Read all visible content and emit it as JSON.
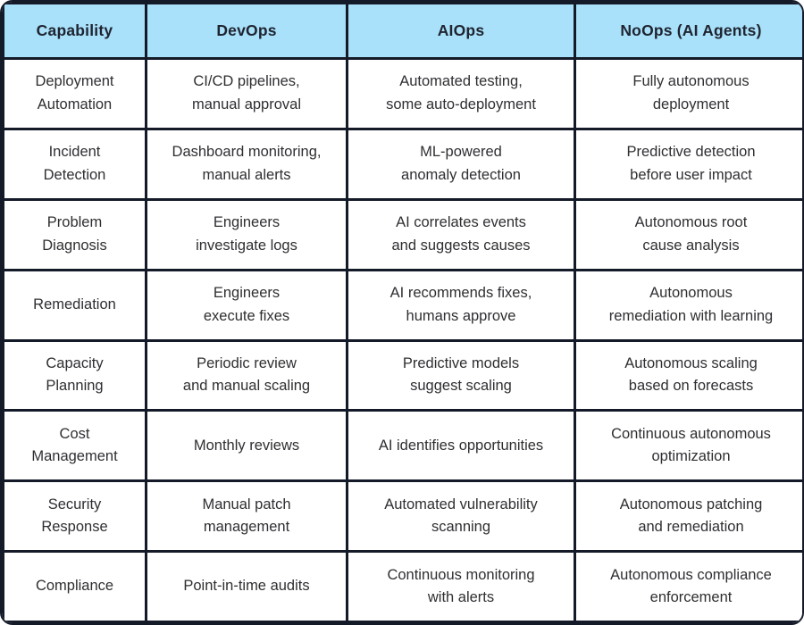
{
  "colors": {
    "header_bg": "#a9e1fa",
    "border": "#141a28",
    "header_text": "#1f2430",
    "cell_text": "#2f2f33"
  },
  "table": {
    "columns": [
      {
        "label": "Capability"
      },
      {
        "label": "DevOps"
      },
      {
        "label": "AIOps"
      },
      {
        "label": "NoOps (AI Agents)"
      }
    ],
    "rows": [
      {
        "capability": "Deployment\nAutomation",
        "devops": "CI/CD pipelines,\nmanual approval",
        "aiops": "Automated testing,\nsome auto-deployment",
        "noops": "Fully autonomous\ndeployment"
      },
      {
        "capability": "Incident\nDetection",
        "devops": "Dashboard monitoring,\nmanual alerts",
        "aiops": "ML-powered\nanomaly detection",
        "noops": "Predictive detection\nbefore user impact"
      },
      {
        "capability": "Problem\nDiagnosis",
        "devops": "Engineers\ninvestigate logs",
        "aiops": "AI correlates events\nand suggests causes",
        "noops": "Autonomous root\ncause analysis"
      },
      {
        "capability": "Remediation",
        "devops": "Engineers\nexecute fixes",
        "aiops": "AI recommends fixes,\nhumans approve",
        "noops": "Autonomous\nremediation with learning"
      },
      {
        "capability": "Capacity\nPlanning",
        "devops": "Periodic review\nand manual scaling",
        "aiops": "Predictive models\nsuggest scaling",
        "noops": "Autonomous scaling\nbased on forecasts"
      },
      {
        "capability": "Cost\nManagement",
        "devops": "Monthly reviews",
        "aiops": "AI identifies opportunities",
        "noops": "Continuous autonomous\noptimization"
      },
      {
        "capability": "Security\nResponse",
        "devops": "Manual patch\nmanagement",
        "aiops": "Automated vulnerability\nscanning",
        "noops": "Autonomous patching\nand remediation"
      },
      {
        "capability": "Compliance",
        "devops": "Point-in-time audits",
        "aiops": "Continuous monitoring\nwith alerts",
        "noops": "Autonomous compliance\nenforcement"
      }
    ]
  }
}
